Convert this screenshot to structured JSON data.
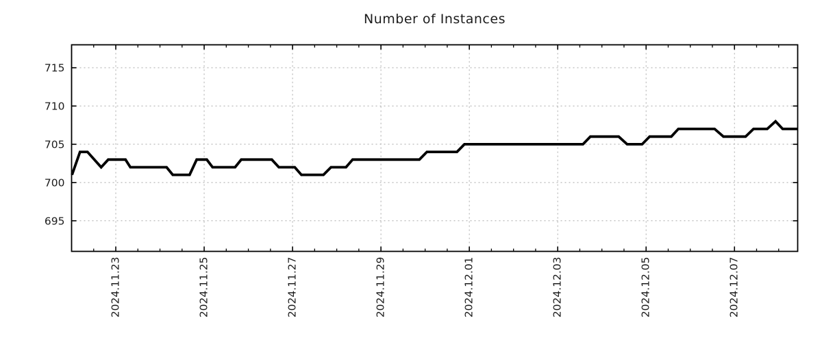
{
  "page": {
    "background": "#ffffff"
  },
  "chart_data": {
    "type": "line",
    "title": "Number of Instances",
    "xlabel": "",
    "ylabel": "",
    "grid": true,
    "legend_position": "none",
    "x_unit": "days since 2024-11-22 00:00",
    "xlim": [
      0,
      16.43
    ],
    "ylim": [
      691,
      718
    ],
    "y_ticks": [
      695,
      700,
      705,
      710,
      715
    ],
    "x_major_ticks": [
      {
        "t": 1,
        "label": "2024.11.23"
      },
      {
        "t": 3,
        "label": "2024.11.25"
      },
      {
        "t": 5,
        "label": "2024.11.27"
      },
      {
        "t": 7,
        "label": "2024.11.29"
      },
      {
        "t": 9,
        "label": "2024.12.01"
      },
      {
        "t": 11,
        "label": "2024.12.03"
      },
      {
        "t": 13,
        "label": "2024.12.05"
      },
      {
        "t": 15,
        "label": "2024.12.07"
      }
    ],
    "x_minor_tick_step": 0.5,
    "series": [
      {
        "name": "instances",
        "color": "#000000",
        "points": [
          [
            0.01,
            701
          ],
          [
            0.19,
            704
          ],
          [
            0.36,
            704
          ],
          [
            0.67,
            702
          ],
          [
            0.83,
            703
          ],
          [
            1.22,
            703
          ],
          [
            1.33,
            702
          ],
          [
            2.15,
            702
          ],
          [
            2.29,
            701
          ],
          [
            2.67,
            701
          ],
          [
            2.83,
            703
          ],
          [
            3.06,
            703
          ],
          [
            3.19,
            702
          ],
          [
            3.7,
            702
          ],
          [
            3.84,
            703
          ],
          [
            4.53,
            703
          ],
          [
            4.69,
            702
          ],
          [
            5.05,
            702
          ],
          [
            5.2,
            701
          ],
          [
            5.7,
            701
          ],
          [
            5.87,
            702
          ],
          [
            6.21,
            702
          ],
          [
            6.36,
            703
          ],
          [
            7.87,
            703
          ],
          [
            8.04,
            704
          ],
          [
            8.72,
            704
          ],
          [
            8.89,
            705
          ],
          [
            11.57,
            705
          ],
          [
            11.74,
            706
          ],
          [
            12.38,
            706
          ],
          [
            12.57,
            705
          ],
          [
            12.91,
            705
          ],
          [
            13.08,
            706
          ],
          [
            13.57,
            706
          ],
          [
            13.73,
            707
          ],
          [
            14.55,
            707
          ],
          [
            14.75,
            706
          ],
          [
            15.25,
            706
          ],
          [
            15.43,
            707
          ],
          [
            15.74,
            707
          ],
          [
            15.93,
            708
          ],
          [
            16.09,
            707
          ],
          [
            16.43,
            707
          ]
        ]
      }
    ],
    "colors": {
      "line": "#000000",
      "grid": "#a8a8a8",
      "frame": "#000000",
      "text": "#1c1c1c"
    }
  }
}
